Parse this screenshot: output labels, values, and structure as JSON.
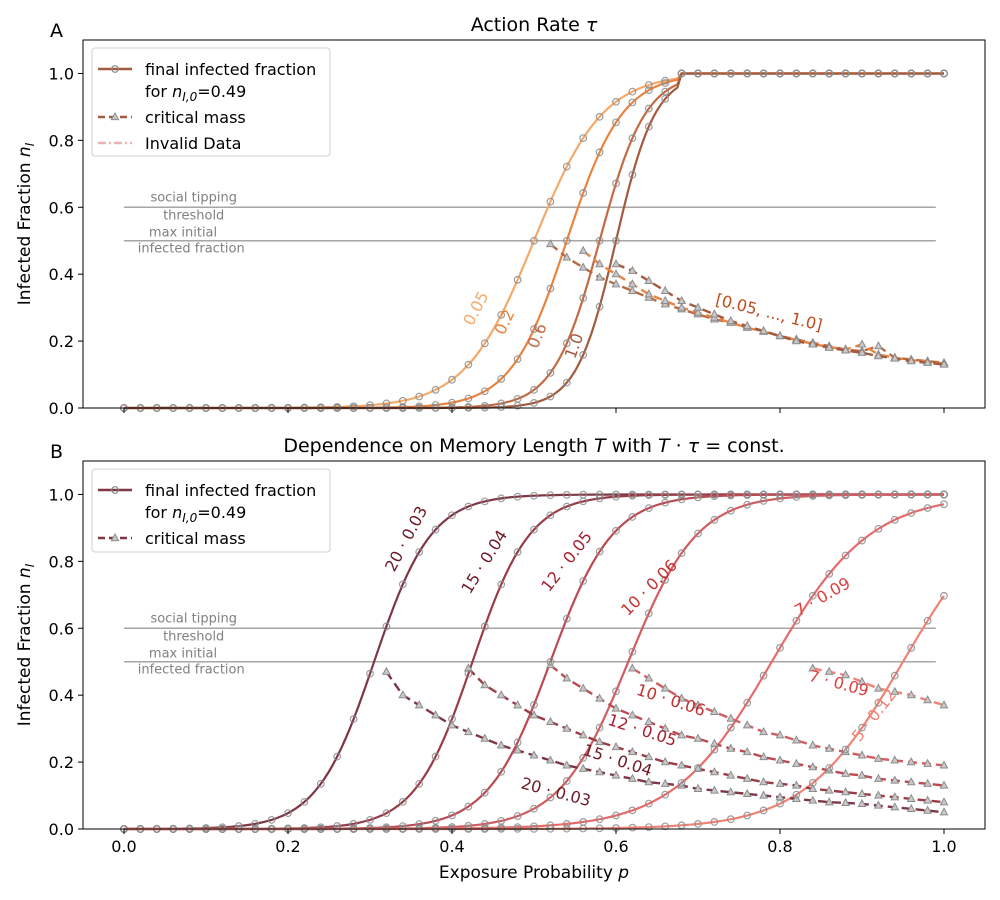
{
  "figure": {
    "xlabel": "Exposure Probability p",
    "annotations": {
      "social_tipping": [
        "social tipping",
        "threshold"
      ],
      "max_initial": [
        "max initial",
        "infected fraction"
      ]
    }
  },
  "colors": {
    "marker": "#8c8c8c",
    "threshold_line": "#a6a6a6",
    "annotation_text": "#808080",
    "panelA": [
      "#f5a96a",
      "#e88440",
      "#c46a45",
      "#a45a3e"
    ],
    "panelB": [
      "#7e3744",
      "#9a3c48",
      "#bb4a53",
      "#d35c60",
      "#e86a6a",
      "#f08276"
    ]
  },
  "chart_data": [
    {
      "panel_label": "A",
      "type": "line",
      "title": "Action Rate τ",
      "xlabel": "",
      "ylabel": "Infected Fraction n_I",
      "xlim": [
        -0.05,
        1.05
      ],
      "ylim": [
        0,
        1.1
      ],
      "xticks": [
        "0.0",
        "0.2",
        "0.4",
        "0.6",
        "0.8",
        "1.0"
      ],
      "yticks": [
        "0.0",
        "0.2",
        "0.4",
        "0.6",
        "0.8",
        "1.0"
      ],
      "show_xtick_labels": false,
      "thresholds": [
        0.6,
        0.5
      ],
      "legend": {
        "placement": "top-left",
        "entries": [
          {
            "label": [
              "final infected fraction",
              "for n_I,0=0.49"
            ],
            "style": "solid",
            "color": "#a45a3e"
          },
          {
            "label": [
              "critical mass"
            ],
            "style": "dashed",
            "color": "#a45a3e"
          },
          {
            "label": [
              "Invalid Data"
            ],
            "style": "dashdot",
            "color": "#e8b4b4"
          }
        ]
      },
      "final_fraction_series": [
        {
          "name": "0.05",
          "color": "#f5a96a",
          "midpoint": 0.5,
          "width": 0.042
        },
        {
          "name": "0.2",
          "color": "#e88440",
          "midpoint": 0.54,
          "width": 0.034
        },
        {
          "name": "0.6",
          "color": "#c46a45",
          "midpoint": 0.58,
          "width": 0.028
        },
        {
          "name": "1.0",
          "color": "#a45a3e",
          "midpoint": 0.6,
          "width": 0.024
        }
      ],
      "critical_mass_series": [
        {
          "color": "#b86a42",
          "x": [
            0.52,
            0.54,
            0.56,
            0.58,
            0.6,
            0.62,
            0.64,
            0.66,
            0.68,
            0.7,
            0.72,
            0.74,
            0.76,
            0.78,
            0.8,
            0.82,
            0.84,
            0.86,
            0.88,
            0.9,
            0.92,
            0.94,
            0.96,
            0.98,
            1.0
          ],
          "y": [
            0.49,
            0.45,
            0.42,
            0.39,
            0.37,
            0.35,
            0.33,
            0.31,
            0.295,
            0.28,
            0.265,
            0.255,
            0.24,
            0.23,
            0.215,
            0.205,
            0.195,
            0.185,
            0.175,
            0.17,
            0.185,
            0.15,
            0.145,
            0.14,
            0.135
          ]
        },
        {
          "color": "#e88440",
          "x": [
            0.56,
            0.58,
            0.6,
            0.62,
            0.64,
            0.66,
            0.68,
            0.7,
            0.72,
            0.74,
            0.76,
            0.78,
            0.8,
            0.82,
            0.84,
            0.86,
            0.88,
            0.9,
            0.92,
            0.94,
            0.96,
            0.98,
            1.0
          ],
          "y": [
            0.47,
            0.43,
            0.4,
            0.37,
            0.34,
            0.32,
            0.3,
            0.285,
            0.27,
            0.255,
            0.24,
            0.228,
            0.215,
            0.203,
            0.192,
            0.182,
            0.175,
            0.19,
            0.16,
            0.15,
            0.143,
            0.138,
            0.133
          ]
        },
        {
          "color": "#a45a3e",
          "x": [
            0.6,
            0.62,
            0.64,
            0.66,
            0.68,
            0.7,
            0.72,
            0.74,
            0.76,
            0.78,
            0.8,
            0.82,
            0.84,
            0.86,
            0.88,
            0.9,
            0.92,
            0.94,
            0.96,
            0.98,
            1.0
          ],
          "y": [
            0.43,
            0.41,
            0.38,
            0.35,
            0.32,
            0.3,
            0.28,
            0.26,
            0.245,
            0.23,
            0.215,
            0.2,
            0.19,
            0.18,
            0.172,
            0.165,
            0.155,
            0.148,
            0.14,
            0.135,
            0.13
          ]
        }
      ],
      "curve_labels": [
        {
          "text": "0.05",
          "x": 0.435,
          "y": 0.29,
          "rotation": -62,
          "color": "#f5a96a"
        },
        {
          "text": "0.2",
          "x": 0.47,
          "y": 0.25,
          "rotation": -65,
          "color": "#e88440"
        },
        {
          "text": "0.6",
          "x": 0.51,
          "y": 0.21,
          "rotation": -68,
          "color": "#c46a45"
        },
        {
          "text": "1.0",
          "x": 0.555,
          "y": 0.18,
          "rotation": -70,
          "color": "#a45a3e"
        },
        {
          "text": "[0.05, ..., 1.0]",
          "x": 0.785,
          "y": 0.27,
          "rotation": 14,
          "color": "#c04a1a"
        }
      ]
    },
    {
      "panel_label": "B",
      "type": "line",
      "title": "Dependence on Memory Length T with T · τ = const.",
      "xlabel": "Exposure Probability p",
      "ylabel": "Infected Fraction n_I",
      "xlim": [
        -0.05,
        1.05
      ],
      "ylim": [
        0,
        1.1
      ],
      "xticks": [
        "0.0",
        "0.2",
        "0.4",
        "0.6",
        "0.8",
        "1.0"
      ],
      "yticks": [
        "0.0",
        "0.2",
        "0.4",
        "0.6",
        "0.8",
        "1.0"
      ],
      "show_xtick_labels": true,
      "thresholds": [
        0.6,
        0.5
      ],
      "legend": {
        "placement": "top-left",
        "entries": [
          {
            "label": [
              "final infected fraction",
              "for n_I,0=0.49"
            ],
            "style": "solid",
            "color": "#7e3744"
          },
          {
            "label": [
              "critical mass"
            ],
            "style": "dashed",
            "color": "#7e3744"
          }
        ]
      },
      "final_fraction_series": [
        {
          "name": "20 · 0.03",
          "color": "#7e3744",
          "midpoint": 0.305,
          "width": 0.035
        },
        {
          "name": "15 · 0.04",
          "color": "#9a3c48",
          "midpoint": 0.425,
          "width": 0.035
        },
        {
          "name": "12 · 0.05",
          "color": "#bb4a53",
          "midpoint": 0.52,
          "width": 0.038
        },
        {
          "name": "10 · 0.06",
          "color": "#d35c60",
          "midpoint": 0.615,
          "width": 0.042
        },
        {
          "name": "7 · 0.09",
          "color": "#e86a6a",
          "midpoint": 0.79,
          "width": 0.06
        },
        {
          "name": "5 · 0.12",
          "color": "#f08276",
          "midpoint": 0.95,
          "width": 0.06
        }
      ],
      "critical_mass_series": [
        {
          "name": "20 · 0.03",
          "color": "#7e3744",
          "x": [
            0.32,
            0.34,
            0.36,
            0.38,
            0.4,
            0.42,
            0.44,
            0.46,
            0.48,
            0.5,
            0.52,
            0.54,
            0.56,
            0.58,
            0.6,
            0.62,
            0.64,
            0.66,
            0.68,
            0.7,
            0.72,
            0.74,
            0.76,
            0.78,
            0.8,
            0.82,
            0.84,
            0.86,
            0.88,
            0.9,
            0.92,
            0.94,
            0.96,
            0.98,
            1.0
          ],
          "y": [
            0.47,
            0.4,
            0.37,
            0.34,
            0.31,
            0.29,
            0.27,
            0.25,
            0.235,
            0.22,
            0.205,
            0.19,
            0.18,
            0.17,
            0.16,
            0.15,
            0.14,
            0.135,
            0.13,
            0.12,
            0.115,
            0.11,
            0.105,
            0.1,
            0.095,
            0.09,
            0.085,
            0.08,
            0.078,
            0.075,
            0.07,
            0.065,
            0.06,
            0.055,
            0.05
          ]
        },
        {
          "name": "15 · 0.04",
          "color": "#9a3c48",
          "x": [
            0.42,
            0.44,
            0.46,
            0.48,
            0.5,
            0.52,
            0.54,
            0.56,
            0.58,
            0.6,
            0.62,
            0.64,
            0.66,
            0.68,
            0.7,
            0.72,
            0.74,
            0.76,
            0.78,
            0.8,
            0.82,
            0.84,
            0.86,
            0.88,
            0.9,
            0.92,
            0.94,
            0.96,
            0.98,
            1.0
          ],
          "y": [
            0.48,
            0.43,
            0.4,
            0.37,
            0.34,
            0.32,
            0.3,
            0.28,
            0.26,
            0.245,
            0.23,
            0.215,
            0.2,
            0.19,
            0.18,
            0.17,
            0.16,
            0.15,
            0.14,
            0.135,
            0.13,
            0.12,
            0.115,
            0.11,
            0.105,
            0.1,
            0.095,
            0.09,
            0.085,
            0.08
          ]
        },
        {
          "name": "12 · 0.05",
          "color": "#bb4a53",
          "x": [
            0.52,
            0.54,
            0.56,
            0.58,
            0.6,
            0.62,
            0.64,
            0.66,
            0.68,
            0.7,
            0.72,
            0.74,
            0.76,
            0.78,
            0.8,
            0.82,
            0.84,
            0.86,
            0.88,
            0.9,
            0.92,
            0.94,
            0.96,
            0.98,
            1.0
          ],
          "y": [
            0.49,
            0.45,
            0.42,
            0.39,
            0.36,
            0.34,
            0.32,
            0.3,
            0.28,
            0.27,
            0.255,
            0.24,
            0.23,
            0.215,
            0.205,
            0.195,
            0.185,
            0.175,
            0.165,
            0.16,
            0.15,
            0.145,
            0.14,
            0.135,
            0.13
          ]
        },
        {
          "name": "10 · 0.06",
          "color": "#d35c60",
          "x": [
            0.62,
            0.64,
            0.66,
            0.68,
            0.7,
            0.72,
            0.74,
            0.76,
            0.78,
            0.8,
            0.82,
            0.84,
            0.86,
            0.88,
            0.9,
            0.92,
            0.94,
            0.96,
            0.98,
            1.0
          ],
          "y": [
            0.48,
            0.45,
            0.42,
            0.39,
            0.37,
            0.35,
            0.33,
            0.31,
            0.29,
            0.28,
            0.265,
            0.25,
            0.24,
            0.23,
            0.22,
            0.21,
            0.205,
            0.2,
            0.195,
            0.19
          ]
        },
        {
          "name": "7 · 0.09",
          "color": "#f08276",
          "x": [
            0.84,
            0.86,
            0.88,
            0.9,
            0.92,
            0.94,
            0.96,
            0.98,
            1.0
          ],
          "y": [
            0.48,
            0.47,
            0.46,
            0.44,
            0.42,
            0.41,
            0.4,
            0.385,
            0.37
          ]
        }
      ],
      "curve_labels": [
        {
          "text": "20 · 0.03",
          "x": 0.35,
          "y": 0.86,
          "rotation": -62,
          "color": "#6e1a26"
        },
        {
          "text": "15 · 0.04",
          "x": 0.445,
          "y": 0.79,
          "rotation": -58,
          "color": "#6e1a26"
        },
        {
          "text": "12 · 0.05",
          "x": 0.545,
          "y": 0.79,
          "rotation": -52,
          "color": "#a82030"
        },
        {
          "text": "10 · 0.06",
          "x": 0.645,
          "y": 0.71,
          "rotation": -45,
          "color": "#c43030"
        },
        {
          "text": "7 · 0.09",
          "x": 0.855,
          "y": 0.68,
          "rotation": -30,
          "color": "#e04040"
        },
        {
          "text": "5 · 0.12",
          "x": 0.92,
          "y": 0.33,
          "rotation": -52,
          "color": "#f08276"
        },
        {
          "text": "10 · 0.06",
          "x": 0.665,
          "y": 0.37,
          "rotation": 18,
          "color": "#c43030"
        },
        {
          "text": "12 · 0.05",
          "x": 0.63,
          "y": 0.28,
          "rotation": 18,
          "color": "#a82030"
        },
        {
          "text": "15 · 0.04",
          "x": 0.6,
          "y": 0.19,
          "rotation": 18,
          "color": "#6e1a26"
        },
        {
          "text": "20 · 0.03",
          "x": 0.525,
          "y": 0.095,
          "rotation": 15,
          "color": "#6e1a26"
        },
        {
          "text": "7 · 0.09",
          "x": 0.87,
          "y": 0.42,
          "rotation": 15,
          "color": "#e04040"
        }
      ]
    }
  ]
}
